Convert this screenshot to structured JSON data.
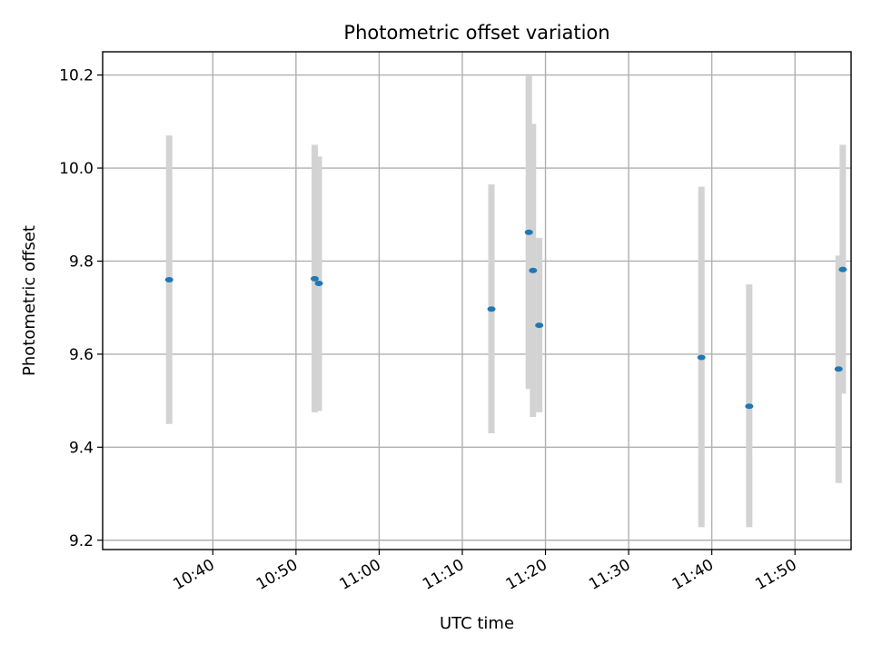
{
  "chart_data": {
    "type": "scatter",
    "title": "Photometric offset variation",
    "xlabel": "UTC time",
    "ylabel": "Photometric offset",
    "x_ticks": [
      "10:40",
      "10:50",
      "11:00",
      "11:10",
      "11:20",
      "11:30",
      "11:40",
      "11:50"
    ],
    "y_ticks": [
      "9.2",
      "9.4",
      "9.6",
      "9.8",
      "10.0",
      "10.2"
    ],
    "xlim": [
      "10:26:45",
      "11:56:45"
    ],
    "ylim": [
      9.18,
      10.25
    ],
    "grid": true,
    "points": [
      {
        "x": "10:34:45",
        "y": 9.76,
        "low": 9.45,
        "high": 10.07
      },
      {
        "x": "10:52:15",
        "y": 9.762,
        "low": 9.475,
        "high": 10.05
      },
      {
        "x": "10:52:45",
        "y": 9.752,
        "low": 9.478,
        "high": 10.025
      },
      {
        "x": "11:13:30",
        "y": 9.697,
        "low": 9.43,
        "high": 9.965
      },
      {
        "x": "11:18:00",
        "y": 9.862,
        "low": 9.525,
        "high": 10.198
      },
      {
        "x": "11:18:30",
        "y": 9.78,
        "low": 9.465,
        "high": 10.095
      },
      {
        "x": "11:19:15",
        "y": 9.662,
        "low": 9.475,
        "high": 9.85
      },
      {
        "x": "11:38:45",
        "y": 9.593,
        "low": 9.228,
        "high": 9.96
      },
      {
        "x": "11:44:30",
        "y": 9.488,
        "low": 9.228,
        "high": 9.75
      },
      {
        "x": "11:55:15",
        "y": 9.568,
        "low": 9.323,
        "high": 9.812
      },
      {
        "x": "11:55:45",
        "y": 9.782,
        "low": 9.515,
        "high": 10.05
      }
    ],
    "colors": {
      "marker": "#1f77b4",
      "errorbar": "#d3d3d3",
      "grid": "#b0b0b0"
    }
  }
}
